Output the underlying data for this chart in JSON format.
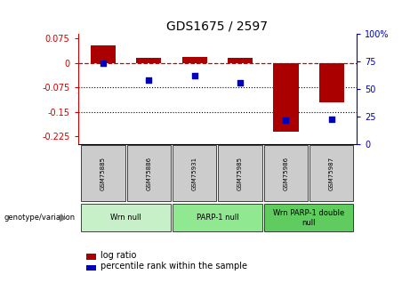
{
  "title": "GDS1675 / 2597",
  "samples": [
    "GSM75885",
    "GSM75886",
    "GSM75931",
    "GSM75985",
    "GSM75986",
    "GSM75987"
  ],
  "log_ratio": [
    0.055,
    0.015,
    0.018,
    0.015,
    -0.21,
    -0.12
  ],
  "percentile_rank": [
    73,
    58,
    62,
    56,
    22,
    23
  ],
  "groups": [
    {
      "label": "Wrn null",
      "start": 0,
      "end": 2,
      "color": "#c8f0c8"
    },
    {
      "label": "PARP-1 null",
      "start": 2,
      "end": 4,
      "color": "#90e890"
    },
    {
      "label": "Wrn PARP-1 double\nnull",
      "start": 4,
      "end": 6,
      "color": "#60cc60"
    }
  ],
  "bar_color": "#aa0000",
  "dot_color": "#0000bb",
  "ylim_left": [
    -0.25,
    0.09
  ],
  "ylim_right": [
    0,
    100
  ],
  "yticks_left": [
    0.075,
    0,
    -0.075,
    -0.15,
    -0.225
  ],
  "yticks_right": [
    100,
    75,
    50,
    25,
    0
  ],
  "hline_color": "#cc0000",
  "dotted_lines": [
    -0.075,
    -0.15
  ],
  "bar_width": 0.55,
  "sample_box_color": "#cccccc",
  "genotype_label": "genotype/variation",
  "legend_entries": [
    "log ratio",
    "percentile rank within the sample"
  ]
}
